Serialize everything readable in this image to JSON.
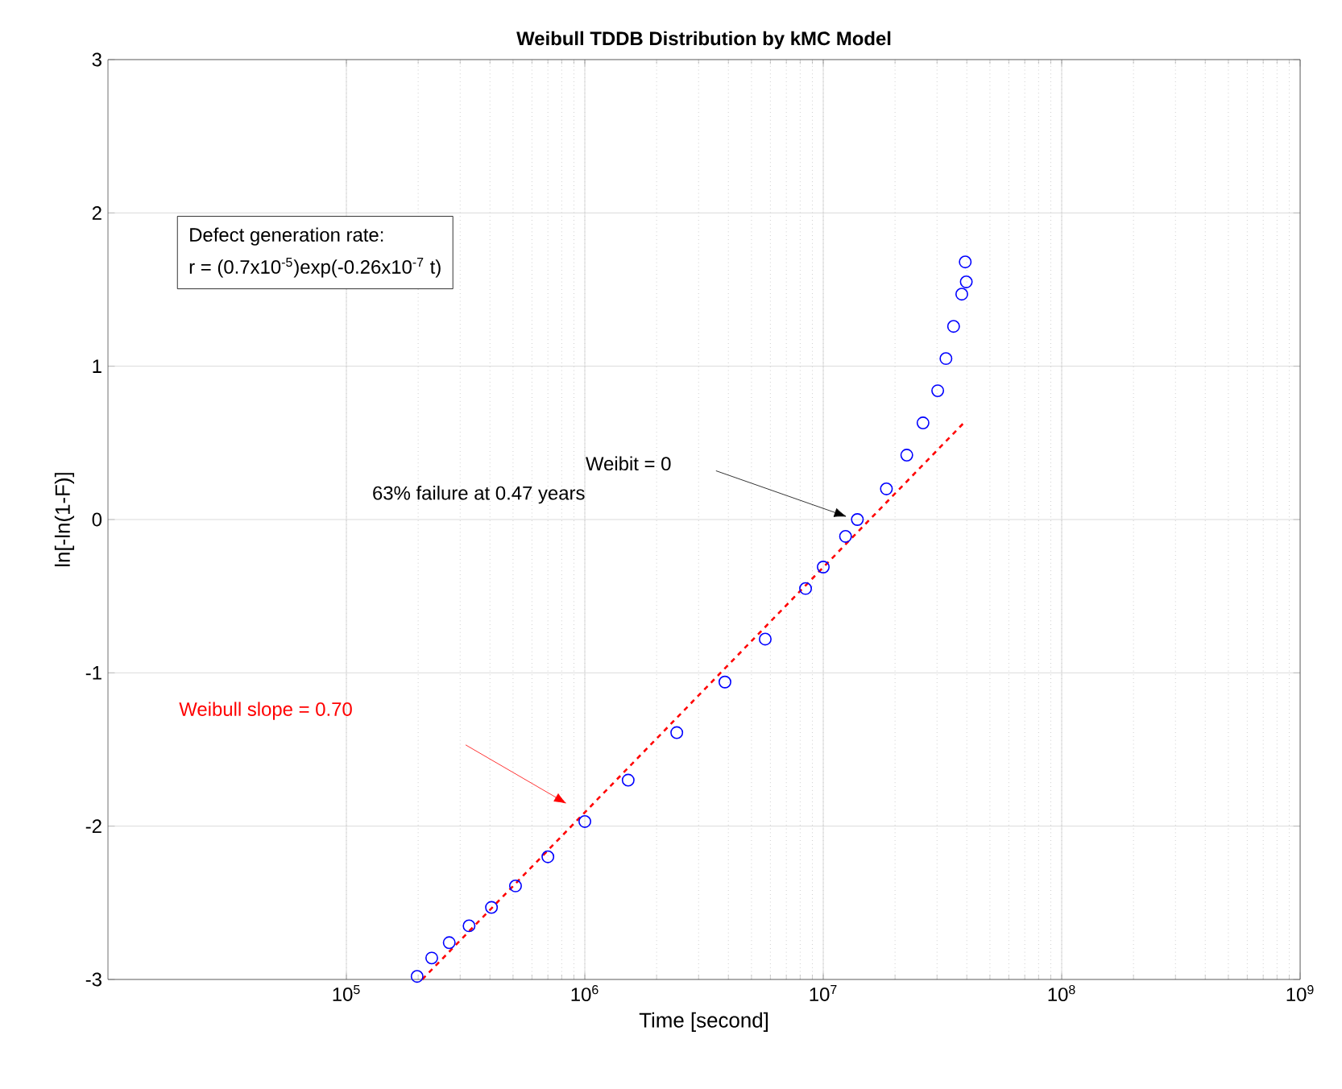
{
  "chart_data": {
    "type": "scatter",
    "title": "Weibull TDDB Distribution by kMC Model",
    "xlabel": "Time [second]",
    "ylabel": "ln[-ln(1-F)]",
    "log": "x",
    "xlim": [
      10000,
      1000000000
    ],
    "ylim": [
      -3,
      3
    ],
    "xticks": [
      {
        "value": 100000,
        "label": "10$^{5}$"
      },
      {
        "value": 1000000,
        "label": "10$^{6}$"
      },
      {
        "value": 10000000,
        "label": "10$^{7}$"
      },
      {
        "value": 100000000,
        "label": "10$^{8}$"
      },
      {
        "value": 1000000000,
        "label": "10$^{9}$"
      }
    ],
    "yticks": [
      -3,
      -2,
      -1,
      0,
      1,
      2,
      3
    ],
    "grid": true,
    "series": [
      {
        "marker": "circle",
        "color": "#0000ff",
        "x": [
          198000,
          228000,
          270000,
          327000,
          406000,
          512000,
          700000,
          1000000,
          1520000,
          2430000,
          3870000,
          5710000,
          8430000,
          10000000,
          12400000,
          13900000,
          18400000,
          22400000,
          26200000,
          30200000,
          32700000,
          35200000,
          38100000,
          39800000,
          39400000
        ],
        "values": [
          -2.98,
          -2.86,
          -2.76,
          -2.65,
          -2.53,
          -2.39,
          -2.2,
          -1.97,
          -1.7,
          -1.39,
          -1.06,
          -0.78,
          -0.45,
          -0.31,
          -0.11,
          0.0,
          0.2,
          0.42,
          0.63,
          0.84,
          1.05,
          1.26,
          1.47,
          1.55,
          1.68
        ]
      },
      {
        "type": "line",
        "color": "#ff0000",
        "line_style": "dashed",
        "x": [
          208000,
          39400000
        ],
        "values": [
          -3,
          0.64
        ]
      }
    ],
    "annotations": [
      "Defect generation rate:",
      "r = (0.7x10$^{-5}$)exp(-0.26x10$^{-7}$ t)",
      "Weibit = 0",
      "63% failure at 0.47 years",
      "Weibull slope = 0.70"
    ]
  }
}
